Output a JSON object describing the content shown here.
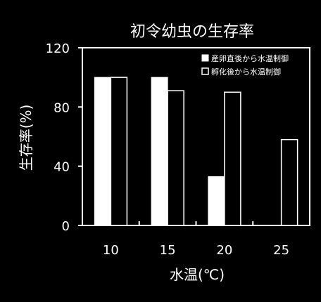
{
  "chart_data": {
    "type": "bar",
    "title": "初令幼虫の生存率",
    "xlabel": "水温(℃)",
    "ylabel": "生存率(%)",
    "categories": [
      "10",
      "15",
      "20",
      "25"
    ],
    "ylim": [
      0,
      120
    ],
    "yticks": [
      "0",
      "40",
      "80",
      "120"
    ],
    "grid": false,
    "legend_position": "top-right",
    "series": [
      {
        "name": "産卵直後から水温制御",
        "values": [
          100,
          100,
          33,
          null
        ],
        "fill": "#ffffff"
      },
      {
        "name": "孵化後から水温制御",
        "values": [
          100,
          91,
          90,
          58
        ],
        "fill": "#000000"
      }
    ]
  },
  "colors": {
    "background": "#000000",
    "foreground": "#ffffff"
  }
}
